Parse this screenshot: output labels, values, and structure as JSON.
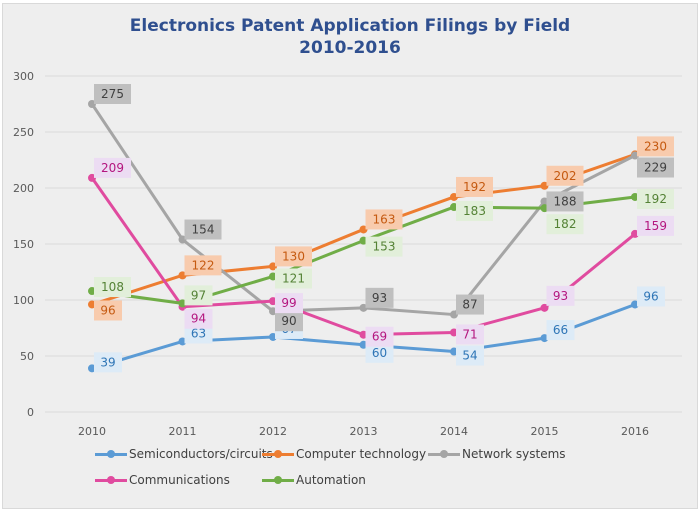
{
  "chart_data": {
    "type": "line",
    "title": "Electronics Patent Application Filings by Field",
    "subtitle": "2010-2016",
    "xlabel": "",
    "ylabel": "",
    "x": [
      "2010",
      "2011",
      "2012",
      "2013",
      "2014",
      "2015",
      "2016"
    ],
    "ylim": [
      0,
      300
    ],
    "yticks": [
      "0",
      "50",
      "100",
      "150",
      "200",
      "250",
      "300"
    ],
    "grid": true,
    "legend_position": "bottom",
    "series": [
      {
        "name": "Semiconductors/circuits",
        "color": "#5b9bd5",
        "label_bg": "#ddebf7",
        "label_color": "#2e75b6",
        "values": [
          39,
          63,
          67,
          60,
          54,
          66,
          96
        ]
      },
      {
        "name": "Computer technology",
        "color": "#ed7d31",
        "label_bg": "#f8cbad",
        "label_color": "#c55a11",
        "values": [
          96,
          122,
          130,
          163,
          192,
          202,
          230
        ]
      },
      {
        "name": "Network systems",
        "color": "#a5a5a5",
        "label_bg": "#bfbfbf",
        "label_color": "#404040",
        "values": [
          275,
          154,
          90,
          93,
          87,
          188,
          229
        ]
      },
      {
        "name": "Communications",
        "color": "#e04b9f",
        "label_bg": "#ecdcf3",
        "label_color": "#b4167f",
        "values": [
          209,
          94,
          99,
          69,
          71,
          93,
          159
        ]
      },
      {
        "name": "Automation",
        "color": "#70ad47",
        "label_bg": "#e2efda",
        "label_color": "#548235",
        "values": [
          108,
          97,
          121,
          153,
          183,
          182,
          192
        ]
      }
    ]
  }
}
